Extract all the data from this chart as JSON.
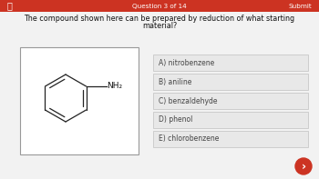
{
  "header_bg": "#cc3322",
  "header_text": "Question 3 of 14",
  "header_right": "Submit",
  "header_left": "〈",
  "bg_color": "#f2f2f2",
  "question_text_line1": "The compound shown here can be prepared by reduction of what starting",
  "question_text_line2": "material?",
  "options": [
    "A) nitrobenzene",
    "B) aniline",
    "C) benzaldehyde",
    "D) phenol",
    "E) chlorobenzene"
  ],
  "option_box_facecolor": "#e8e8e8",
  "option_border_color": "#c8c8c8",
  "option_text_color": "#444444",
  "structure_box_color": "#ffffff",
  "structure_border_color": "#999999",
  "nh2_label": "NH₂",
  "fab_color": "#cc3322",
  "fab_text": "›",
  "title_fontsize": 5.8,
  "option_fontsize": 5.5,
  "header_fontsize": 5.2
}
